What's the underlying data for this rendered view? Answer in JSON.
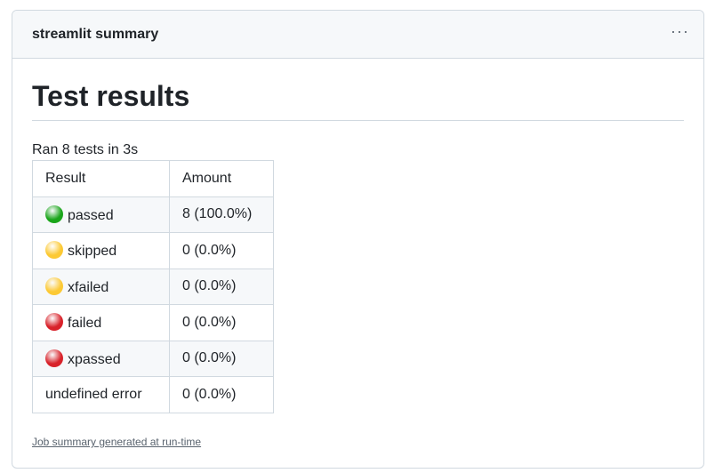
{
  "header": {
    "title": "streamlit summary",
    "more_icon": "ellipsis-icon"
  },
  "main": {
    "heading": "Test results",
    "summary": "Ran 8 tests in 3s",
    "table": {
      "columns": [
        "Result",
        "Amount"
      ],
      "rows": [
        {
          "icon": "green-circle",
          "color": "#1aa51a",
          "result": "passed",
          "amount": "8 (100.0%)"
        },
        {
          "icon": "yellow-circle",
          "color": "#fcc934",
          "result": "skipped",
          "amount": "0 (0.0%)"
        },
        {
          "icon": "yellow-circle",
          "color": "#fcc934",
          "result": "xfailed",
          "amount": "0 (0.0%)"
        },
        {
          "icon": "red-circle",
          "color": "#d8222a",
          "result": "failed",
          "amount": "0 (0.0%)"
        },
        {
          "icon": "red-circle",
          "color": "#d8222a",
          "result": "xpassed",
          "amount": "0 (0.0%)"
        },
        {
          "icon": "",
          "color": "",
          "result": "undefined error",
          "amount": "0 (0.0%)"
        }
      ]
    },
    "footer_link": "Job summary generated at run-time"
  }
}
